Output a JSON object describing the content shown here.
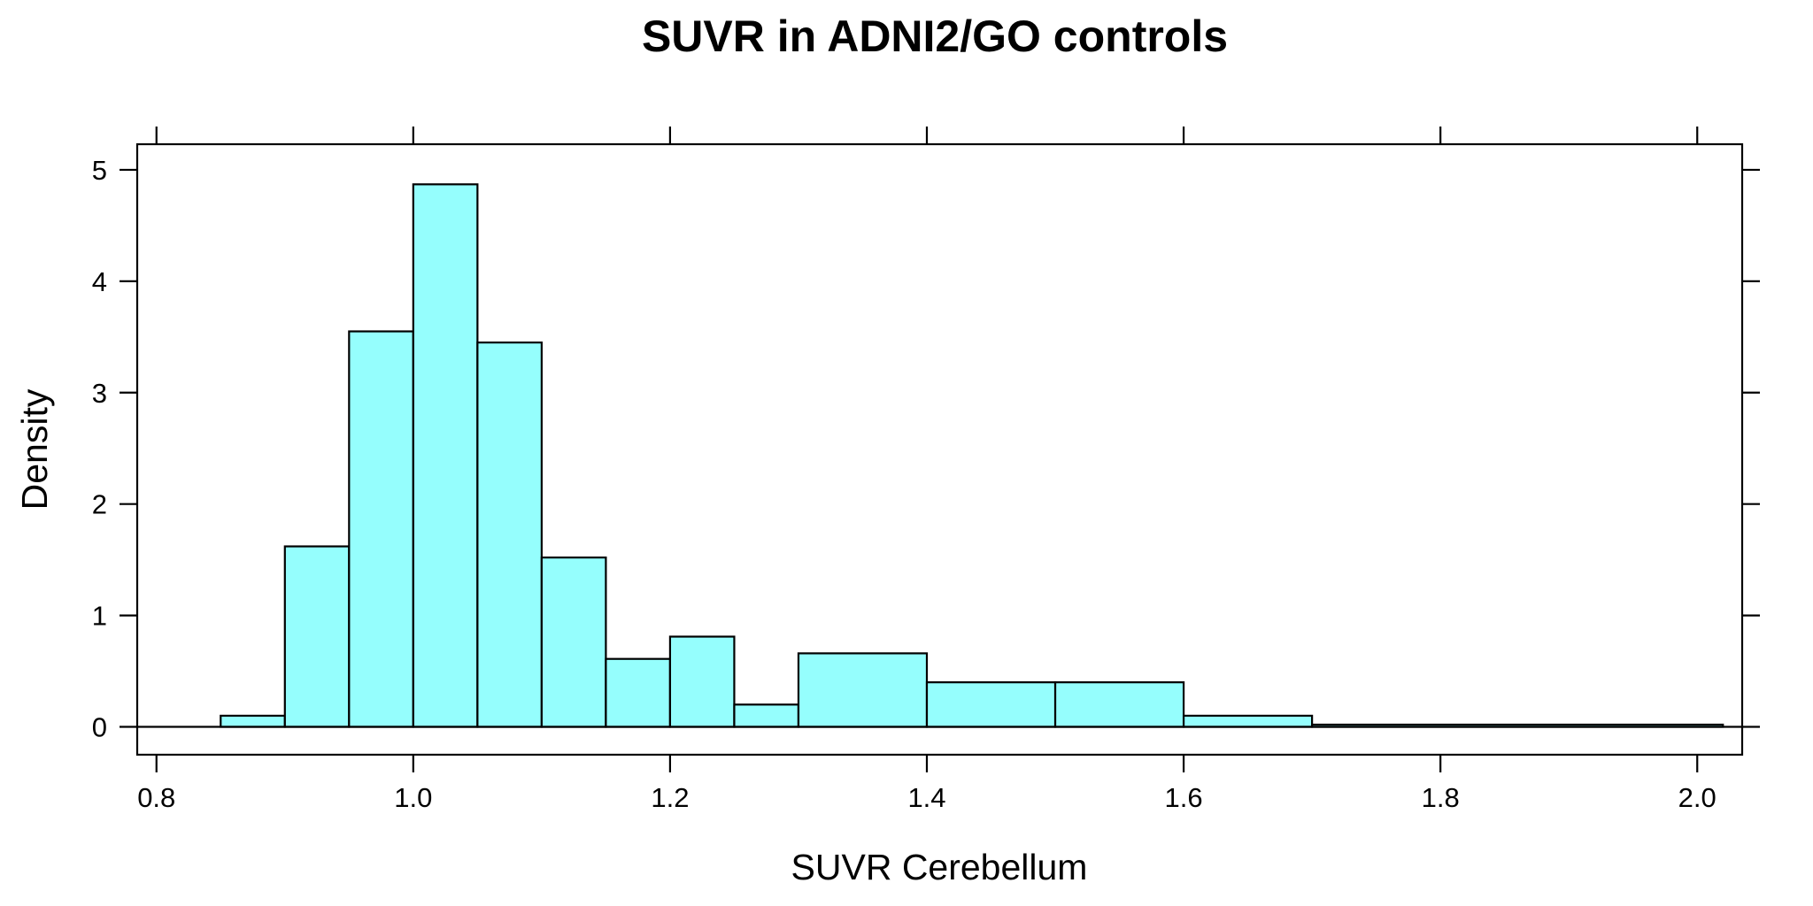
{
  "chart_data": {
    "type": "bar",
    "subtype": "histogram",
    "title": "SUVR in ADNI2/GO controls",
    "xlabel": "SUVR Cerebellum",
    "ylabel": "Density",
    "xlim": [
      0.785,
      2.035
    ],
    "ylim": [
      -0.25,
      5.23
    ],
    "x_ticks": [
      0.8,
      1.0,
      1.2,
      1.4,
      1.6,
      1.8,
      2.0
    ],
    "x_tick_labels": [
      "0.8",
      "1.0",
      "1.2",
      "1.4",
      "1.6",
      "1.8",
      "2.0"
    ],
    "y_ticks": [
      0,
      1,
      2,
      3,
      4,
      5
    ],
    "y_tick_labels": [
      "0",
      "1",
      "2",
      "3",
      "4",
      "5"
    ],
    "bins": [
      {
        "x0": 0.85,
        "x1": 0.9,
        "value": 0.1
      },
      {
        "x0": 0.9,
        "x1": 0.95,
        "value": 1.62
      },
      {
        "x0": 0.95,
        "x1": 1.0,
        "value": 3.55
      },
      {
        "x0": 1.0,
        "x1": 1.05,
        "value": 4.87
      },
      {
        "x0": 1.05,
        "x1": 1.1,
        "value": 3.45
      },
      {
        "x0": 1.1,
        "x1": 1.15,
        "value": 1.52
      },
      {
        "x0": 1.15,
        "x1": 1.2,
        "value": 0.61
      },
      {
        "x0": 1.2,
        "x1": 1.25,
        "value": 0.81
      },
      {
        "x0": 1.25,
        "x1": 1.3,
        "value": 0.2
      },
      {
        "x0": 1.3,
        "x1": 1.4,
        "value": 0.66
      },
      {
        "x0": 1.4,
        "x1": 1.5,
        "value": 0.4
      },
      {
        "x0": 1.5,
        "x1": 1.6,
        "value": 0.4
      },
      {
        "x0": 1.6,
        "x1": 1.7,
        "value": 0.1
      },
      {
        "x0": 1.7,
        "x1": 2.02,
        "value": 0.02
      }
    ],
    "baseline_range": [
      0.785,
      2.035
    ],
    "bar_color": "#95fefd",
    "grid": false,
    "frame": "box",
    "ticks_mirrored": true
  }
}
